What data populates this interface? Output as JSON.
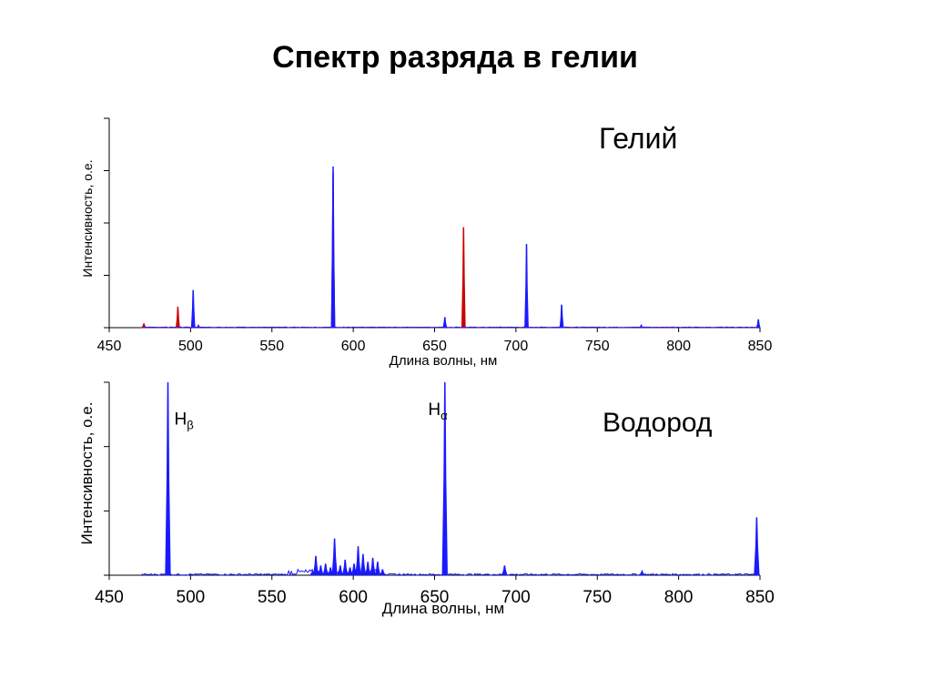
{
  "title": "Спектр разряда в гелии",
  "chart_data": [
    {
      "type": "line",
      "panel_label": "Гелий",
      "xlabel": "Длина волны, нм",
      "ylabel": "Интенсивность, о.е.",
      "xlim": [
        450,
        850
      ],
      "ylim": [
        0,
        1
      ],
      "x_ticks": [
        450,
        500,
        550,
        600,
        650,
        700,
        750,
        800,
        850
      ],
      "y_tick_count": 5,
      "series": [
        {
          "color": "#cc0000",
          "peaks": [
            {
              "x": 471.3,
              "y": 0.02
            },
            {
              "x": 492.2,
              "y": 0.1
            },
            {
              "x": 501.6,
              "y": 0.08
            },
            {
              "x": 587.6,
              "y": 0.74
            },
            {
              "x": 667.8,
              "y": 0.48
            },
            {
              "x": 706.5,
              "y": 0.08
            },
            {
              "x": 728.1,
              "y": 0.02
            }
          ]
        },
        {
          "color": "#1a1aff",
          "peaks": [
            {
              "x": 501.6,
              "y": 0.18
            },
            {
              "x": 504.8,
              "y": 0.01
            },
            {
              "x": 587.6,
              "y": 0.77
            },
            {
              "x": 656.3,
              "y": 0.05
            },
            {
              "x": 706.5,
              "y": 0.4
            },
            {
              "x": 728.1,
              "y": 0.11
            },
            {
              "x": 777.0,
              "y": 0.01
            },
            {
              "x": 849.0,
              "y": 0.04
            }
          ]
        }
      ]
    },
    {
      "type": "line",
      "panel_label": "Водород",
      "xlabel": "Длина волны, нм",
      "ylabel": "Интенсивность, о.е.",
      "xlim": [
        450,
        850
      ],
      "ylim": [
        0,
        1
      ],
      "x_ticks": [
        450,
        500,
        550,
        600,
        650,
        700,
        750,
        800,
        850
      ],
      "y_tick_count": 4,
      "annotations": [
        {
          "text": "H",
          "sub": "β",
          "x": 490,
          "y": 0.78
        },
        {
          "text": "H",
          "sub": "α",
          "x": 646,
          "y": 0.83
        }
      ],
      "series": [
        {
          "color": "#1a1aff",
          "peaks": [
            {
              "x": 486.1,
              "y": 1.0
            },
            {
              "x": 575.0,
              "y": 0.02
            },
            {
              "x": 577.0,
              "y": 0.1
            },
            {
              "x": 580.0,
              "y": 0.05
            },
            {
              "x": 583.0,
              "y": 0.06
            },
            {
              "x": 586.0,
              "y": 0.04
            },
            {
              "x": 588.5,
              "y": 0.19
            },
            {
              "x": 592.0,
              "y": 0.05
            },
            {
              "x": 595.0,
              "y": 0.08
            },
            {
              "x": 598.0,
              "y": 0.04
            },
            {
              "x": 600.5,
              "y": 0.06
            },
            {
              "x": 603.0,
              "y": 0.15
            },
            {
              "x": 606.0,
              "y": 0.11
            },
            {
              "x": 609.0,
              "y": 0.07
            },
            {
              "x": 612.0,
              "y": 0.09
            },
            {
              "x": 615.0,
              "y": 0.07
            },
            {
              "x": 618.0,
              "y": 0.03
            },
            {
              "x": 656.3,
              "y": 1.0
            },
            {
              "x": 693.0,
              "y": 0.05
            },
            {
              "x": 777.5,
              "y": 0.02
            },
            {
              "x": 848.0,
              "y": 0.3
            }
          ]
        }
      ]
    }
  ]
}
